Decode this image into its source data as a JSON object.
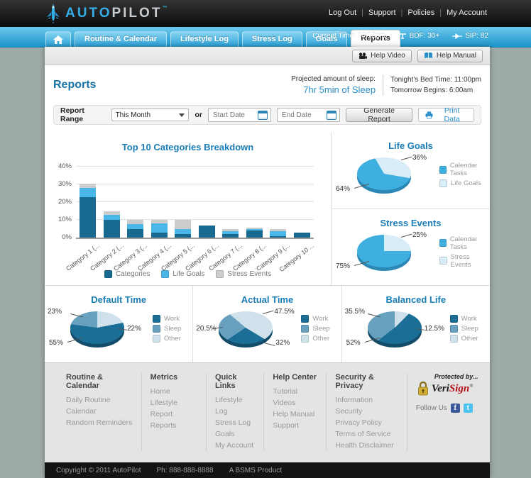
{
  "header": {
    "logo_auto": "AUTO",
    "logo_pilot": "PILOT",
    "logo_tm": "™",
    "links": [
      "Log Out",
      "Support",
      "Policies",
      "My Account"
    ]
  },
  "nav": {
    "tabs": [
      {
        "label": "Routine & Calendar",
        "active": false
      },
      {
        "label": "Lifestyle Log",
        "active": false
      },
      {
        "label": "Stress Log",
        "active": false
      },
      {
        "label": "Goals",
        "active": false
      },
      {
        "label": "Reports",
        "active": true
      }
    ],
    "current_time": "Current Time: 10:12pm",
    "bdf": "BDF: 30+",
    "sip": "SIP: 82"
  },
  "toolbar": {
    "help_video": "Help Video",
    "help_manual": "Help Manual"
  },
  "report_header": {
    "title": "Reports",
    "projected_label": "Projected amount of sleep:",
    "projected_value": "7hr 5min of Sleep",
    "bed_time": "Tonight's Bed Time: 11:00pm",
    "tomorrow": "Tomorrow Begins: 6:00am"
  },
  "report_range": {
    "label": "Report Range",
    "select_value": "This Month",
    "or": "or",
    "start_placeholder": "Start Date",
    "end_placeholder": "End Date",
    "generate": "Generate Report",
    "print": "Print Data"
  },
  "chart_data": [
    {
      "type": "bar",
      "title": "Top 10 Categories Breakdown",
      "stacked": true,
      "categories": [
        "Category 1 (...",
        "Category 2 (...",
        "Category 3 (...",
        "Category 4 (...",
        "Category 5 (...",
        "Category 6 (...",
        "Category 7 (...",
        "Category 8 (...",
        "Category 9 (...",
        "Category 10 ..."
      ],
      "series": [
        {
          "name": "Categories",
          "color": "#17698f",
          "values": [
            23,
            10,
            5,
            3,
            2,
            7,
            2,
            4,
            1,
            3
          ]
        },
        {
          "name": "Life Goals",
          "color": "#49b8e8",
          "values": [
            5,
            3,
            2.5,
            5,
            3,
            0,
            1.5,
            1,
            2.5,
            0
          ]
        },
        {
          "name": "Stress Events",
          "color": "#cccccc",
          "values": [
            2.5,
            2,
            2.5,
            2,
            5,
            0,
            1.5,
            0.5,
            1.5,
            0
          ]
        }
      ],
      "ylabel": "",
      "xlabel": "",
      "ylim": [
        0,
        40
      ],
      "ytick_step": 10,
      "ytick_suffix": "%",
      "grid": true,
      "legend_position": "bottom"
    },
    {
      "type": "pie",
      "title": "Life Goals",
      "start_deg": -30,
      "base_color": "#2b87b3",
      "slices": [
        {
          "label": "Life Goals",
          "value": 36,
          "color": "#d8edf8"
        },
        {
          "label": "Calendar Tasks",
          "value": 64,
          "color": "#3fafe0"
        }
      ],
      "callouts": [
        {
          "text": "36%",
          "side": "tr"
        },
        {
          "text": "64%",
          "side": "bl"
        }
      ],
      "legend": [
        {
          "label": "Calendar Tasks",
          "color": "#3fafe0"
        },
        {
          "label": "Life Goals",
          "color": "#d8edf8"
        }
      ]
    },
    {
      "type": "pie",
      "title": "Stress Events",
      "start_deg": 0,
      "base_color": "#2b87b3",
      "slices": [
        {
          "label": "Stress Events",
          "value": 25,
          "color": "#d8edf8"
        },
        {
          "label": "Calendar Tasks",
          "value": 75,
          "color": "#3fafe0"
        }
      ],
      "callouts": [
        {
          "text": "25%",
          "side": "tr"
        },
        {
          "text": "75%",
          "side": "bl"
        }
      ],
      "legend": [
        {
          "label": "Calendar Tasks",
          "color": "#3fafe0"
        },
        {
          "label": "Stress Events",
          "color": "#d8edf8"
        }
      ]
    },
    {
      "type": "pie",
      "title": "Default Time",
      "start_deg": 0,
      "base_color": "#124c68",
      "slices": [
        {
          "label": "Other",
          "value": 22,
          "color": "#cfe2ec"
        },
        {
          "label": "Work",
          "value": 55,
          "color": "#1b6e96"
        },
        {
          "label": "Sleep",
          "value": 23,
          "color": "#68a1bf"
        }
      ],
      "callouts": [
        {
          "text": "23%",
          "side": "tl"
        },
        {
          "text": "22%",
          "side": "r"
        },
        {
          "text": "55%",
          "side": "bl"
        }
      ],
      "legend": [
        {
          "label": "Work",
          "color": "#1b6e96"
        },
        {
          "label": "Sleep",
          "color": "#68a1bf"
        },
        {
          "label": "Other",
          "color": "#cfe2ec"
        }
      ]
    },
    {
      "type": "pie",
      "title": "Actual Time",
      "start_deg": -50,
      "base_color": "#124c68",
      "slices": [
        {
          "label": "Other",
          "value": 47.5,
          "color": "#cfe2ec"
        },
        {
          "label": "Work",
          "value": 32,
          "color": "#1b6e96"
        },
        {
          "label": "Sleep",
          "value": 20.5,
          "color": "#68a1bf"
        }
      ],
      "callouts": [
        {
          "text": "47.5%",
          "side": "tr"
        },
        {
          "text": "20.5%",
          "side": "l"
        },
        {
          "text": "32%",
          "side": "br"
        }
      ],
      "legend": [
        {
          "label": "Work",
          "color": "#1b6e96"
        },
        {
          "label": "Sleep",
          "color": "#68a1bf"
        },
        {
          "label": "Other",
          "color": "#cfe2ec"
        }
      ]
    },
    {
      "type": "pie",
      "title": "Balanced Life",
      "start_deg": 0,
      "base_color": "#124c68",
      "slices": [
        {
          "label": "Other",
          "value": 12.5,
          "color": "#cfe2ec"
        },
        {
          "label": "Work",
          "value": 52,
          "color": "#1b6e96"
        },
        {
          "label": "Sleep",
          "value": 35.5,
          "color": "#68a1bf"
        }
      ],
      "callouts": [
        {
          "text": "35.5%",
          "side": "tl"
        },
        {
          "text": "12.5%",
          "side": "r"
        },
        {
          "text": "52%",
          "side": "bl"
        }
      ],
      "legend": [
        {
          "label": "Work",
          "color": "#1b6e96"
        },
        {
          "label": "Sleep",
          "color": "#68a1bf"
        },
        {
          "label": "Other",
          "color": "#cfe2ec"
        }
      ]
    }
  ],
  "footer": {
    "columns": [
      {
        "heading": "Routine & Calendar",
        "links": [
          "Daily Routine",
          "Calendar",
          "Random Reminders"
        ]
      },
      {
        "heading": "Metrics",
        "links": [
          "Home",
          "Lifestyle Report",
          "Reports"
        ]
      },
      {
        "heading": "Quick Links",
        "links": [
          "Lifestyle Log",
          "Stress Log",
          "Goals",
          "My Account"
        ]
      },
      {
        "heading": "Help Center",
        "links": [
          "Tutorial Videos",
          "Help Manual",
          "Support"
        ]
      },
      {
        "heading": "Security & Privacy",
        "links": [
          "Information Security",
          "Privacy Policy",
          "Terms of Service",
          "Health Disclaimer"
        ]
      }
    ],
    "protected_by": "Protected by...",
    "verisign_veri": "Veri",
    "verisign_sign": "Sign",
    "verisign_r": "®",
    "follow_us": "Follow Us"
  },
  "copyright": {
    "text": "Copyright © 2011 AutoPilot",
    "phone": "Ph: 888-888-8888",
    "product": "A BSMS Product"
  },
  "colors": {
    "accent_blue": "#1a7db5",
    "nav_blue": "#1d94c9",
    "pie_main": "#3fafe0",
    "pie_pale": "#d8edf8",
    "work": "#1b6e96",
    "sleep": "#68a1bf",
    "other": "#cfe2ec",
    "bar_categories": "#17698f",
    "bar_life_goals": "#49b8e8",
    "bar_stress": "#cccccc",
    "page_bg": "#9faba6"
  }
}
